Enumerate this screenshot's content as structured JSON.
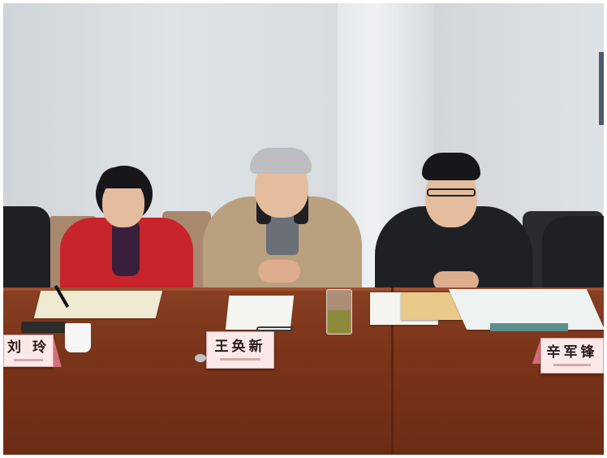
{
  "nameplates": {
    "left": "刘 玲",
    "center": "王奂新",
    "right": "辛军锋"
  },
  "colors": {
    "table": "#7a3419",
    "wall": "#d9dde1",
    "nameplate": "#fbe9ea"
  }
}
